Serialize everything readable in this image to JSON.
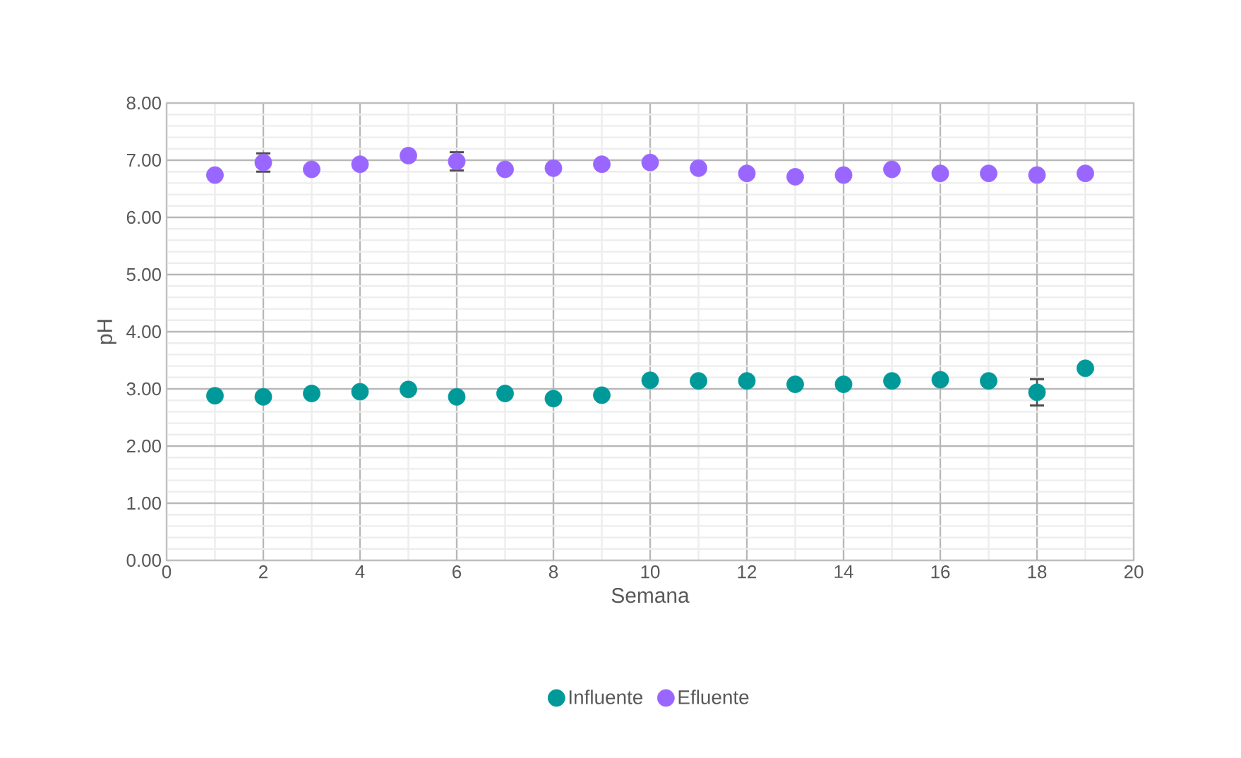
{
  "chart_data": {
    "type": "scatter",
    "xlabel": "Semana",
    "ylabel": "pH",
    "xlim": [
      0,
      20
    ],
    "xticks": [
      0,
      2,
      4,
      6,
      8,
      10,
      12,
      14,
      16,
      18,
      20
    ],
    "ylim": [
      0,
      8
    ],
    "yticks": [
      {
        "value": 0,
        "label": "0.00"
      },
      {
        "value": 1,
        "label": "1.00"
      },
      {
        "value": 2,
        "label": "2.00"
      },
      {
        "value": 3,
        "label": "3.00"
      },
      {
        "value": 4,
        "label": "4.00"
      },
      {
        "value": 5,
        "label": "5.00"
      },
      {
        "value": 6,
        "label": "6.00"
      },
      {
        "value": 7,
        "label": "7.00"
      },
      {
        "value": 8,
        "label": "8.00"
      }
    ],
    "grid": true,
    "legend": "bottom",
    "marker": "circle",
    "x": [
      1,
      2,
      3,
      4,
      5,
      6,
      7,
      8,
      9,
      10,
      11,
      12,
      13,
      14,
      15,
      16,
      17,
      18,
      19
    ],
    "series": [
      {
        "name": "Influente",
        "color": "#009999",
        "values": [
          2.88,
          2.86,
          2.92,
          2.95,
          2.99,
          2.86,
          2.92,
          2.83,
          2.89,
          3.15,
          3.14,
          3.14,
          3.08,
          3.08,
          3.14,
          3.16,
          3.14,
          2.94,
          3.36
        ],
        "errors": [
          null,
          null,
          null,
          null,
          null,
          null,
          null,
          null,
          null,
          null,
          null,
          null,
          null,
          null,
          null,
          null,
          null,
          0.23,
          null
        ]
      },
      {
        "name": "Efluente",
        "color": "#9966ff",
        "values": [
          6.74,
          6.96,
          6.84,
          6.93,
          7.08,
          6.98,
          6.84,
          6.86,
          6.93,
          6.96,
          6.86,
          6.77,
          6.71,
          6.74,
          6.84,
          6.77,
          6.77,
          6.74,
          6.77
        ],
        "errors": [
          null,
          0.16,
          null,
          null,
          null,
          0.16,
          null,
          null,
          null,
          null,
          null,
          null,
          null,
          null,
          null,
          null,
          null,
          null,
          null
        ]
      }
    ]
  }
}
